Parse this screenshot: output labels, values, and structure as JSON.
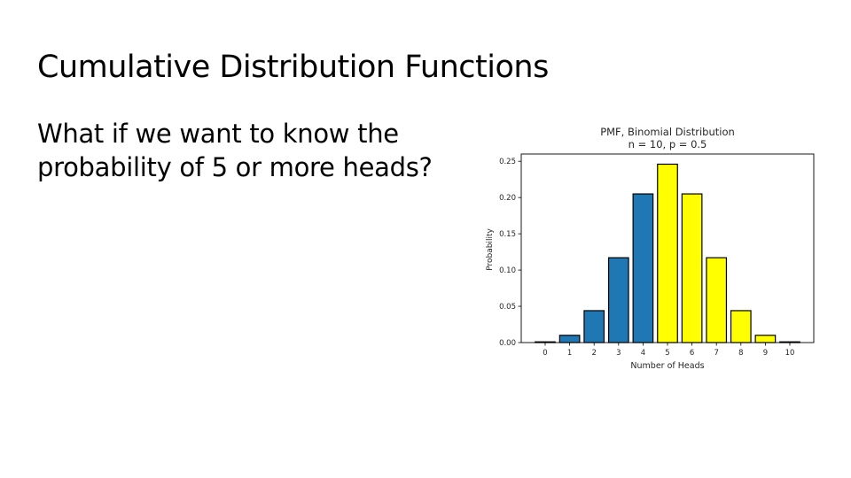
{
  "slide": {
    "title": "Cumulative Distribution Functions",
    "body": "What if we want to know the probability of 5 or more heads?"
  },
  "chart_data": {
    "type": "bar",
    "title": "PMF, Binomial Distribution",
    "subtitle": "n = 10, p = 0.5",
    "xlabel": "Number of Heads",
    "ylabel": "Probability",
    "categories": [
      "0",
      "1",
      "2",
      "3",
      "4",
      "5",
      "6",
      "7",
      "8",
      "9",
      "10"
    ],
    "values": [
      0.001,
      0.01,
      0.044,
      0.117,
      0.205,
      0.246,
      0.205,
      0.117,
      0.044,
      0.01,
      0.001
    ],
    "bar_colors": [
      "#1f77b4",
      "#1f77b4",
      "#1f77b4",
      "#1f77b4",
      "#1f77b4",
      "#ffff00",
      "#ffff00",
      "#ffff00",
      "#ffff00",
      "#ffff00",
      "#ffff00"
    ],
    "yticks": [
      "0.00",
      "0.05",
      "0.10",
      "0.15",
      "0.20",
      "0.25"
    ],
    "ylim": [
      0,
      0.26
    ],
    "grid": false,
    "legend": "none"
  }
}
